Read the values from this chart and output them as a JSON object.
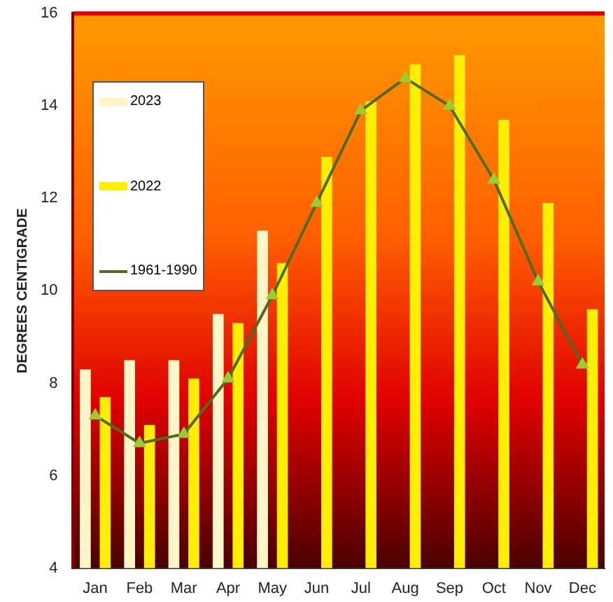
{
  "chart_data": {
    "type": "bar",
    "ylabel": "DEGREES CENTIGRADE",
    "categories": [
      "Jan",
      "Feb",
      "Mar",
      "Apr",
      "May",
      "Jun",
      "Jul",
      "Aug",
      "Sep",
      "Oct",
      "Nov",
      "Dec"
    ],
    "series": [
      {
        "name": "2023",
        "color": "#fff6c8",
        "values": [
          8.3,
          8.5,
          8.5,
          9.5,
          11.3,
          null,
          null,
          null,
          null,
          null,
          null,
          null
        ]
      },
      {
        "name": "2022",
        "color": "#ffee00",
        "values": [
          7.7,
          7.1,
          8.1,
          9.3,
          10.6,
          12.9,
          14.1,
          14.9,
          15.1,
          13.7,
          11.9,
          9.6
        ]
      },
      {
        "name": "1961-1990",
        "type": "line",
        "color": "#4f6b1f",
        "marker": "triangle",
        "values": [
          7.3,
          6.7,
          6.9,
          8.1,
          9.9,
          11.9,
          13.9,
          14.6,
          14.0,
          12.4,
          10.2,
          8.4
        ]
      }
    ],
    "ylim": [
      4,
      16
    ],
    "yticks": [
      4,
      6,
      8,
      10,
      12,
      14,
      16
    ],
    "grid": false,
    "legend": "top left"
  }
}
